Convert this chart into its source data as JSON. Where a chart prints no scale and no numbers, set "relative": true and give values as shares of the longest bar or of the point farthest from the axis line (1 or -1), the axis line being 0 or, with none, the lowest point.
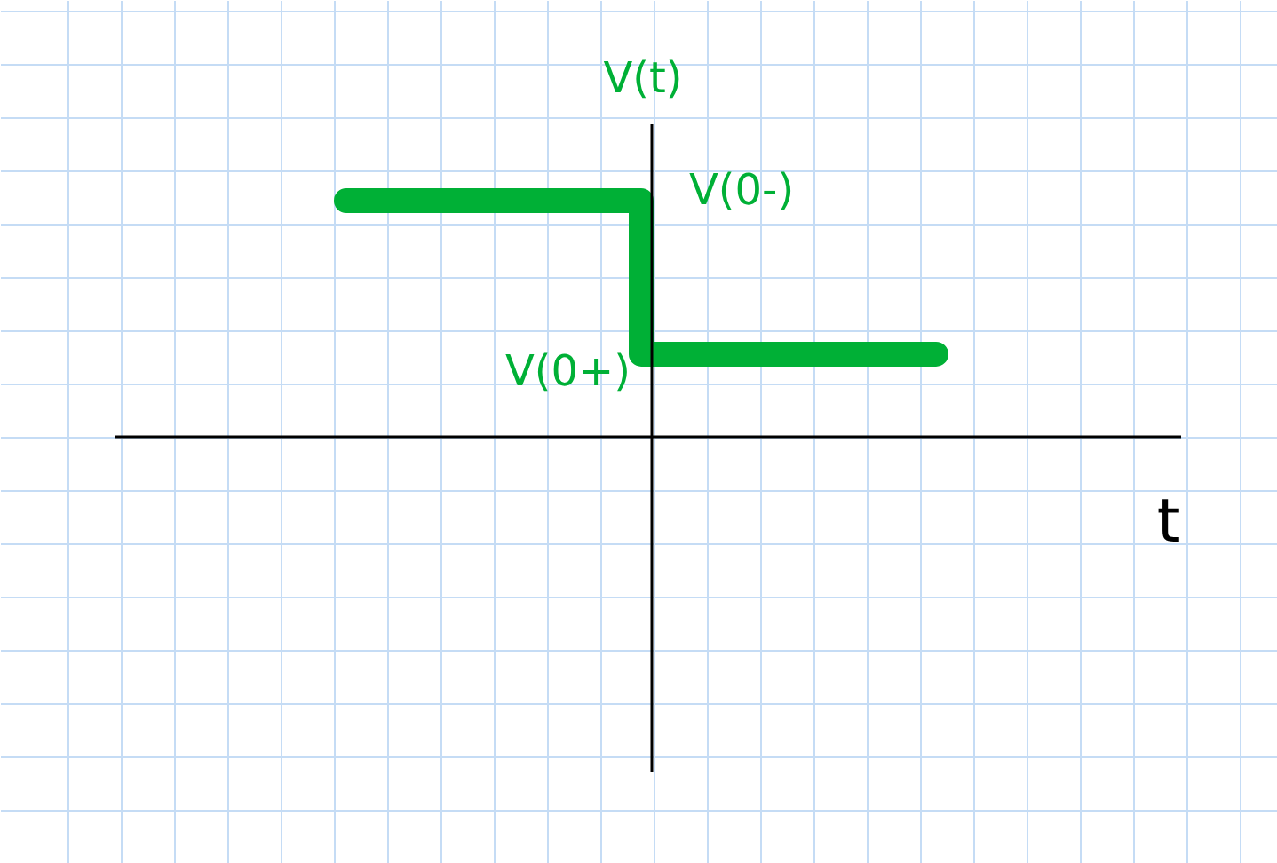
{
  "chart_data": {
    "type": "step",
    "relative": true,
    "xlabel": "t",
    "ylabel": "V(t)",
    "categories": [
      null,
      null,
      null
    ],
    "series": [
      {
        "color": "#00b036",
        "values": [
          1,
          0.35,
          0.35
        ]
      }
    ],
    "annotations": [
      "V(0-)",
      "V(0+)"
    ],
    "grid": true
  }
}
